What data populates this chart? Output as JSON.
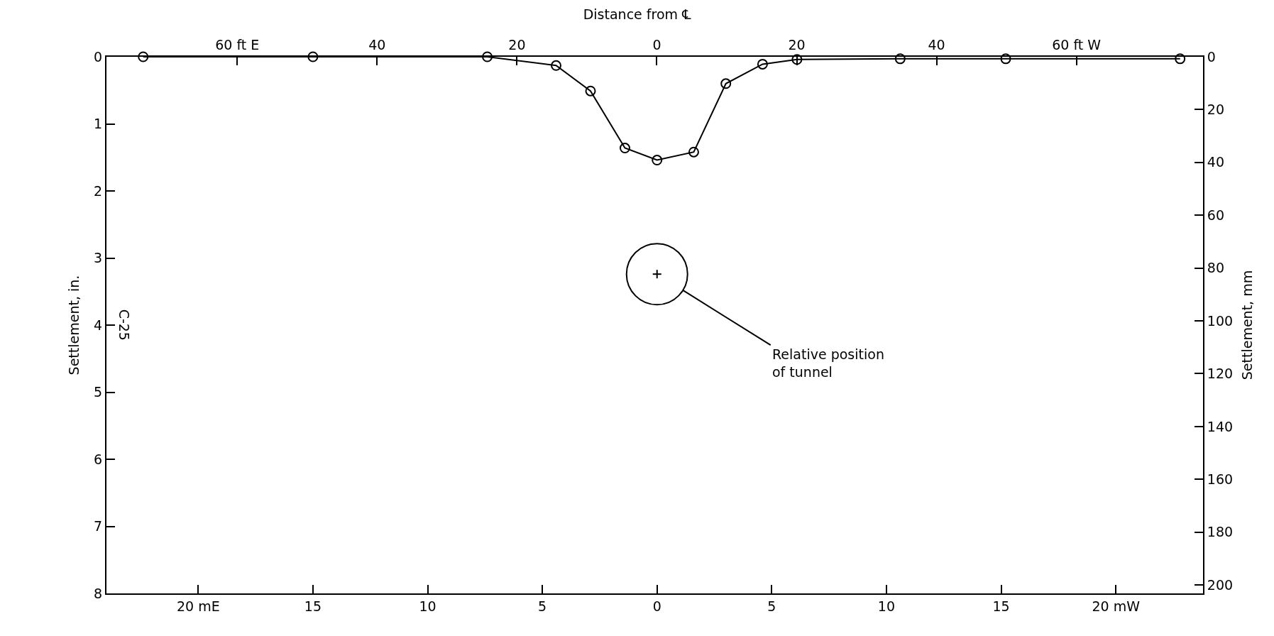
{
  "chart_data": {
    "type": "line",
    "title": "Distance from ℄",
    "ylabel": "Settlement, in.",
    "y2label": "Settlement, mm",
    "x": [
      -22.4,
      -15.0,
      -7.4,
      -4.4,
      -2.9,
      -1.4,
      0,
      1.6,
      3.0,
      4.6,
      6.1,
      10.6,
      15.2,
      22.8
    ],
    "series": [
      {
        "color": "#000000",
        "values": [
          0,
          0,
          0,
          0.13,
          0.51,
          1.36,
          1.54,
          1.42,
          0.4,
          0.11,
          0.04,
          0.03,
          0.03,
          0.03
        ]
      }
    ],
    "marker": "circle",
    "line_style": "solid",
    "xlim": [
      -24,
      23.8
    ],
    "xticks": [
      {
        "value": -20,
        "label": "20 mE"
      },
      {
        "value": -15,
        "label": "15"
      },
      {
        "value": -10,
        "label": "10"
      },
      {
        "value": -5,
        "label": "5"
      },
      0,
      {
        "value": 5,
        "label": "5"
      },
      10,
      15,
      {
        "value": 20,
        "label": "20 mW"
      }
    ],
    "x2lim": [
      -78.7,
      78.1
    ],
    "x2ticks": [
      {
        "value": -60,
        "label": "60 ft E"
      },
      {
        "value": -40,
        "label": "40"
      },
      {
        "value": -20,
        "label": "20"
      },
      0,
      20,
      40,
      {
        "value": 60,
        "label": "60 ft W"
      }
    ],
    "ylim": [
      8,
      0
    ],
    "yticks": [
      0,
      1,
      2,
      3,
      4,
      5,
      6,
      7,
      8
    ],
    "y2lim": [
      203.2,
      0
    ],
    "y2ticks": [
      0,
      20,
      40,
      60,
      80,
      100,
      120,
      140,
      160,
      180,
      200
    ],
    "annotations": [
      {
        "text": "Relative position of tunnel",
        "x": 0,
        "y": 3.24
      },
      "C-25"
    ]
  }
}
